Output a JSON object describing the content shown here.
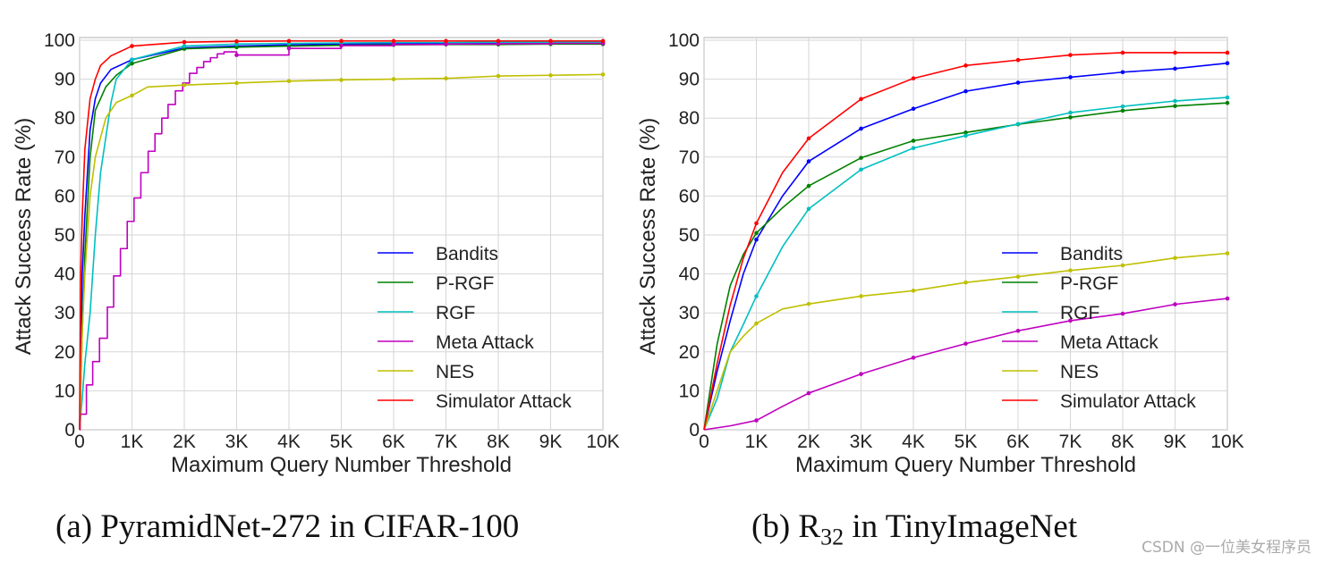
{
  "chart_data": [
    {
      "type": "line",
      "caption": "(a) PyramidNet-272 in CIFAR-100",
      "xlabel": "Maximum Query Number Threshold",
      "ylabel": "Attack Success Rate (%)",
      "xlim": [
        0,
        10000
      ],
      "ylim": [
        0,
        100
      ],
      "xticks": [
        0,
        1000,
        2000,
        3000,
        4000,
        5000,
        6000,
        7000,
        8000,
        9000,
        10000
      ],
      "xtick_labels": [
        "0",
        "1K",
        "2K",
        "3K",
        "4K",
        "5K",
        "6K",
        "7K",
        "8K",
        "9K",
        "10K"
      ],
      "yticks": [
        0,
        10,
        20,
        30,
        40,
        50,
        60,
        70,
        80,
        90,
        100
      ],
      "grid": true,
      "legend_position": "lower-right",
      "series": [
        {
          "name": "Bandits",
          "color": "#0000ff",
          "x": [
            0,
            50,
            100,
            200,
            300,
            400,
            600,
            1000,
            2000,
            3000,
            4000,
            5000,
            6000,
            7000,
            8000,
            9000,
            10000
          ],
          "y": [
            0,
            40,
            55,
            77,
            85,
            89,
            92.5,
            95,
            98,
            98.5,
            98.8,
            99,
            99.1,
            99.2,
            99.2,
            99.3,
            99.3
          ]
        },
        {
          "name": "P-RGF",
          "color": "#008000",
          "x": [
            0,
            50,
            100,
            200,
            300,
            500,
            700,
            1000,
            2000,
            3000,
            4000,
            5000,
            6000,
            7000,
            8000,
            9000,
            10000
          ],
          "y": [
            0,
            25,
            45,
            70,
            82,
            88,
            91,
            94,
            97.8,
            98.2,
            98.5,
            98.7,
            98.8,
            98.9,
            98.9,
            99,
            99
          ]
        },
        {
          "name": "RGF",
          "color": "#00bfbf",
          "x": [
            0,
            60,
            100,
            200,
            300,
            400,
            500,
            600,
            700,
            1000,
            2000,
            3000,
            4000,
            5000,
            6000,
            7000,
            8000,
            9000,
            10000
          ],
          "y": [
            0,
            10,
            17,
            30,
            50,
            66,
            75,
            84,
            90,
            95,
            98.5,
            99,
            99.2,
            99.3,
            99.4,
            99.4,
            99.5,
            99.5,
            99.5
          ]
        },
        {
          "name": "Meta Attack",
          "color": "#bf00bf",
          "step": true,
          "x": [
            0,
            10,
            130,
            250,
            380,
            530,
            650,
            780,
            910,
            1040,
            1170,
            1310,
            1440,
            1570,
            1690,
            1830,
            1970,
            2100,
            2240,
            2370,
            2500,
            2630,
            2760,
            3000,
            4000,
            5000,
            6000,
            7000,
            8000,
            9000,
            10000
          ],
          "y": [
            0,
            4,
            11.5,
            17.5,
            23.5,
            31.5,
            39.5,
            46.5,
            53.5,
            59.5,
            66,
            71.5,
            76,
            80,
            83.5,
            87,
            89,
            91.5,
            93,
            94.5,
            95.5,
            96.5,
            97,
            96.2,
            97.9,
            98.6,
            98.9,
            99,
            99.1,
            99.2,
            99.2
          ]
        },
        {
          "name": "NES",
          "color": "#bfbf00",
          "x": [
            0,
            50,
            100,
            200,
            300,
            500,
            700,
            1000,
            1300,
            2000,
            3000,
            4000,
            5000,
            6000,
            7000,
            8000,
            9000,
            10000
          ],
          "y": [
            0,
            25,
            40,
            60,
            70,
            80,
            84,
            85.8,
            88,
            88.5,
            89,
            89.5,
            89.8,
            90,
            90.2,
            90.8,
            91,
            91.2
          ]
        },
        {
          "name": "Simulator Attack",
          "color": "#ff0000",
          "x": [
            0,
            20,
            50,
            100,
            200,
            300,
            400,
            600,
            1000,
            2000,
            3000,
            4000,
            5000,
            6000,
            7000,
            8000,
            9000,
            10000
          ],
          "y": [
            0,
            40,
            55,
            72,
            85,
            90,
            93.5,
            96,
            98.5,
            99.5,
            99.7,
            99.8,
            99.8,
            99.8,
            99.8,
            99.8,
            99.8,
            99.8
          ]
        }
      ]
    },
    {
      "type": "line",
      "caption": "(b) R",
      "caption_sub": "32",
      "caption_tail": " in TinyImageNet",
      "xlabel": "Maximum Query Number Threshold",
      "ylabel": "Attack Success Rate (%)",
      "xlim": [
        0,
        10000
      ],
      "ylim": [
        0,
        100
      ],
      "xticks": [
        0,
        1000,
        2000,
        3000,
        4000,
        5000,
        6000,
        7000,
        8000,
        9000,
        10000
      ],
      "xtick_labels": [
        "0",
        "1K",
        "2K",
        "3K",
        "4K",
        "5K",
        "6K",
        "7K",
        "8K",
        "9K",
        "10K"
      ],
      "yticks": [
        0,
        10,
        20,
        30,
        40,
        50,
        60,
        70,
        80,
        90,
        100
      ],
      "grid": true,
      "legend_position": "lower-right",
      "series": [
        {
          "name": "Bandits",
          "color": "#0000ff",
          "x": [
            0,
            250,
            500,
            750,
            1000,
            1500,
            2000,
            3000,
            4000,
            5000,
            6000,
            7000,
            8000,
            9000,
            10000
          ],
          "y": [
            0,
            15,
            28,
            40,
            48.8,
            60,
            68.9,
            77.3,
            82.4,
            86.9,
            89.1,
            90.5,
            91.8,
            92.7,
            94.1
          ]
        },
        {
          "name": "P-RGF",
          "color": "#008000",
          "x": [
            0,
            250,
            500,
            750,
            1000,
            1500,
            2000,
            3000,
            4000,
            5000,
            6000,
            7000,
            8000,
            9000,
            10000
          ],
          "y": [
            0,
            22,
            37,
            45,
            50.5,
            57,
            62.6,
            69.8,
            74.2,
            76.3,
            78.4,
            80.2,
            81.9,
            83.1,
            83.9
          ]
        },
        {
          "name": "RGF",
          "color": "#00bfbf",
          "x": [
            0,
            250,
            500,
            750,
            1000,
            1500,
            2000,
            3000,
            4000,
            5000,
            6000,
            7000,
            8000,
            9000,
            10000
          ],
          "y": [
            0,
            8,
            20,
            27,
            34.3,
            47,
            56.7,
            66.8,
            72.3,
            75.5,
            78.5,
            81.4,
            83,
            84.4,
            85.3
          ]
        },
        {
          "name": "Meta Attack",
          "color": "#bf00bf",
          "x": [
            0,
            500,
            1000,
            1500,
            2000,
            3000,
            4000,
            5000,
            6000,
            7000,
            8000,
            9000,
            10000
          ],
          "y": [
            0,
            1,
            2.4,
            6,
            9.4,
            14.3,
            18.5,
            22.1,
            25.4,
            28,
            29.8,
            32.2,
            33.7
          ]
        },
        {
          "name": "NES",
          "color": "#bfbf00",
          "x": [
            0,
            250,
            500,
            750,
            1000,
            1500,
            2000,
            3000,
            4000,
            5000,
            6000,
            7000,
            8000,
            9000,
            10000
          ],
          "y": [
            0,
            10,
            20,
            24,
            27.3,
            31,
            32.3,
            34.3,
            35.7,
            37.8,
            39.3,
            40.9,
            42.2,
            44.1,
            45.3
          ]
        },
        {
          "name": "Simulator Attack",
          "color": "#ff0000",
          "x": [
            0,
            250,
            500,
            750,
            1000,
            1500,
            2000,
            3000,
            4000,
            5000,
            6000,
            7000,
            8000,
            9000,
            10000
          ],
          "y": [
            0,
            17,
            32,
            44,
            53,
            66,
            74.8,
            84.9,
            90.2,
            93.5,
            94.9,
            96.2,
            96.8,
            96.8,
            96.8
          ]
        }
      ]
    }
  ],
  "watermark": "CSDN @一位美女程序员"
}
